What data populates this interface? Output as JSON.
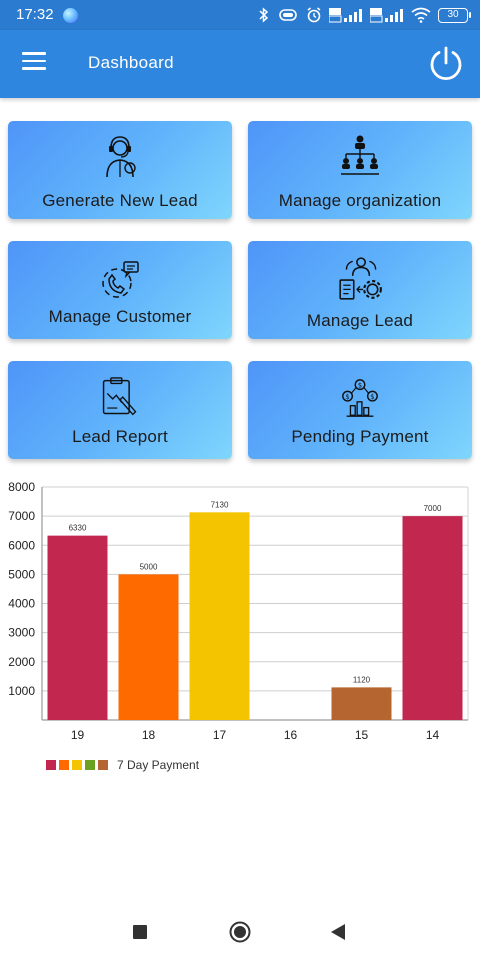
{
  "status_bar": {
    "time": "17:32",
    "battery": "30",
    "icons": [
      "bluetooth-icon",
      "vibrate-icon",
      "alarm-icon",
      "volte-signal-icon",
      "wifi-icon",
      "battery-icon"
    ]
  },
  "app_bar": {
    "title": "Dashboard",
    "menu_icon": "hamburger-menu-icon",
    "power_icon": "power-icon"
  },
  "tiles": [
    {
      "label": "Generate New Lead",
      "icon": "headset-agent-icon"
    },
    {
      "label": "Manage organization",
      "icon": "org-chart-icon"
    },
    {
      "label": "Manage Customer",
      "icon": "customer-support-icon"
    },
    {
      "label": "Manage Lead",
      "icon": "lead-settings-icon"
    },
    {
      "label": "Lead Report",
      "icon": "report-clipboard-icon"
    },
    {
      "label": "Pending Payment",
      "icon": "payment-coins-icon"
    }
  ],
  "colors": {
    "status_bar": "#2b7bd0",
    "app_bar": "#2f86de",
    "tile_gradient_start": "#4f95f8",
    "tile_gradient_end": "#7fd6fc"
  },
  "chart_data": {
    "type": "bar",
    "categories": [
      "19",
      "18",
      "17",
      "16",
      "15",
      "14"
    ],
    "values": [
      6330,
      5000,
      7130,
      0,
      1120,
      7000
    ],
    "data_labels": [
      "6330",
      "5000",
      "7130",
      "",
      "1120",
      "7000"
    ],
    "colors": [
      "#c2274f",
      "#ff6a00",
      "#f5c400",
      "#6aa121",
      "#b5652f",
      "#c2274f"
    ],
    "y_ticks": [
      "1000",
      "2000",
      "3000",
      "4000",
      "5000",
      "6000",
      "7000",
      "8000"
    ],
    "ylim": [
      0,
      8000
    ],
    "grid": true,
    "legend": {
      "position": "bottom-left",
      "label": "7 Day Payment",
      "swatch_colors": [
        "#c2274f",
        "#ff6a00",
        "#f5c400",
        "#6aa121",
        "#b5652f"
      ]
    }
  },
  "nav_bar": {
    "buttons": [
      "recents-square-icon",
      "home-circle-icon",
      "back-triangle-icon"
    ]
  }
}
